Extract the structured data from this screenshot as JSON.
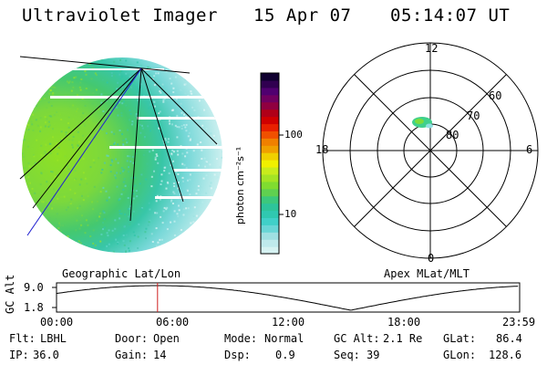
{
  "header": {
    "title": "Ultraviolet Imager",
    "date": "15 Apr 07",
    "time": "05:14:07 UT"
  },
  "colorbar": {
    "label": "photon cm⁻²s⁻¹",
    "ticks": [
      {
        "label": "100",
        "value": 100
      },
      {
        "label": "10",
        "value": 10
      }
    ],
    "colors": [
      "#d6f2f2",
      "#bfe9ec",
      "#9fe0e2",
      "#69d6d6",
      "#40d0c8",
      "#30c8b0",
      "#2ec49a",
      "#3cc87c",
      "#60d050",
      "#80dc30",
      "#a4e424",
      "#c8ec1c",
      "#f0f000",
      "#f0d000",
      "#f0a000",
      "#f08000",
      "#f05000",
      "#e82000",
      "#d00000",
      "#b00018",
      "#900040",
      "#700060",
      "#500070",
      "#300050",
      "#100030"
    ]
  },
  "polar": {
    "mlt_labels": [
      {
        "label": "12",
        "pos": "top"
      },
      {
        "label": "6",
        "pos": "right"
      },
      {
        "label": "0",
        "pos": "bottom"
      },
      {
        "label": "18",
        "pos": "left"
      }
    ],
    "lat_labels": [
      "60",
      "70",
      "80"
    ]
  },
  "timeline": {
    "left_title": "Geographic Lat/Lon",
    "right_title": "Apex MLat/MLT",
    "axis_label": "GC Alt",
    "y_ticks": [
      "9.0",
      "1.8"
    ],
    "x_ticks": [
      "00:00",
      "06:00",
      "12:00",
      "18:00",
      "23:59"
    ],
    "marker_time": "05:14",
    "marker_color": "#d02020"
  },
  "status": {
    "flt": {
      "label": "Flt:",
      "value": "LBHL"
    },
    "ip": {
      "label": "IP:",
      "value": "36.0"
    },
    "door": {
      "label": "Door:",
      "value": "Open"
    },
    "gain": {
      "label": "Gain:",
      "value": "14"
    },
    "mode": {
      "label": "Mode:",
      "value": "Normal"
    },
    "dsp": {
      "label": "Dsp:",
      "value": "0.9"
    },
    "gcalt": {
      "label": "GC Alt:",
      "value": "2.1 Re"
    },
    "seq": {
      "label": "Seq:",
      "value": "39"
    },
    "glat": {
      "label": "GLat:",
      "value": "86.4"
    },
    "glon": {
      "label": "GLon:",
      "value": "128.6"
    }
  }
}
